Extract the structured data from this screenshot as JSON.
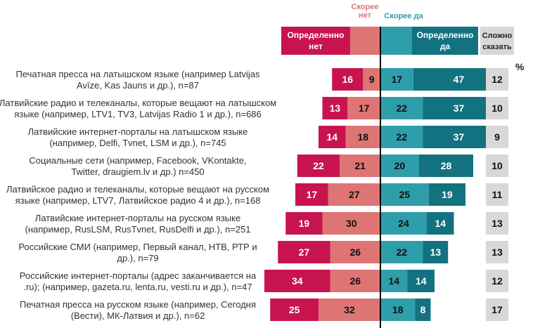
{
  "colors": {
    "def_no": "#C8144E",
    "rather_no": "#DF7474",
    "rather_yes": "#2E9EAB",
    "def_yes": "#137280",
    "hard": "#D8D8D8"
  },
  "header": {
    "rather_no_top": "Скорее",
    "rather_no_bottom": "нет",
    "rather_yes": "Скорее да",
    "def_no_line1": "Определенно",
    "def_no_line2": "нет",
    "def_yes_line1": "Определенно",
    "def_yes_line2": "да",
    "hard_line1": "Сложно",
    "hard_line2": "сказать",
    "percent": "%"
  },
  "chart_data": {
    "type": "bar",
    "orientation": "horizontal-diverging",
    "unit": "%",
    "series_names": [
      "Определенно нет",
      "Скорее нет",
      "Скорее да",
      "Определенно да",
      "Сложно сказать"
    ],
    "rows": [
      {
        "line1": "Печатная пресса на латышском языке (например Latvijas",
        "line2": "Avīze, Kas Jauns и др.), n=87",
        "def_no": 16,
        "rather_no": 9,
        "rather_yes": 17,
        "def_yes": 47,
        "hard": 12
      },
      {
        "line1": "Латвийские радио и телеканалы, которые вещают на латышском",
        "line2": "языке (например, LTV1, TV3, Latvijas Radio 1 и др.), n=686",
        "def_no": 13,
        "rather_no": 17,
        "rather_yes": 22,
        "def_yes": 37,
        "hard": 10
      },
      {
        "line1": "Латвийские интернет-порталы на латышском языке",
        "line2": "(например, Delfi, Tvnet, LSM и др.), n=745",
        "def_no": 14,
        "rather_no": 18,
        "rather_yes": 22,
        "def_yes": 37,
        "hard": 9
      },
      {
        "line1": "Социальные сети (например, Facebook, VKontakte,",
        "line2": "Twitter, draugiem.lv и др.) n=450",
        "def_no": 22,
        "rather_no": 21,
        "rather_yes": 20,
        "def_yes": 28,
        "hard": 10
      },
      {
        "line1": "Латвийское радио и телеканалы, которые вещают на русском",
        "line2": "языке (например, LTV7, Латвийское радио 4 и др.), n=168",
        "def_no": 17,
        "rather_no": 27,
        "rather_yes": 25,
        "def_yes": 19,
        "hard": 11
      },
      {
        "line1": "Латвийские интернет-порталы на русском языке",
        "line2": "(например, RusLSM, RusTvnet, RusDelfi и др.), n=251",
        "def_no": 19,
        "rather_no": 30,
        "rather_yes": 24,
        "def_yes": 14,
        "hard": 13
      },
      {
        "line1": "Российские СМИ (например, Первый канал, НТВ, РТР и",
        "line2": "др.), n=79",
        "def_no": 27,
        "rather_no": 26,
        "rather_yes": 22,
        "def_yes": 13,
        "hard": 13
      },
      {
        "line1": "Российские интернет-порталы (адрес заканчивается на",
        "line2": ".ru); (например, gazeta.ru, lenta.ru, vesti.ru и др.), n=47",
        "def_no": 34,
        "rather_no": 26,
        "rather_yes": 14,
        "def_yes": 14,
        "hard": 12
      },
      {
        "line1": "Печатная пресса на русском языке (например, Сегодня",
        "line2": "(Вести), МК-Латвия и др.), n=62",
        "def_no": 25,
        "rather_no": 32,
        "rather_yes": 18,
        "def_yes": 8,
        "hard": 17
      }
    ]
  }
}
